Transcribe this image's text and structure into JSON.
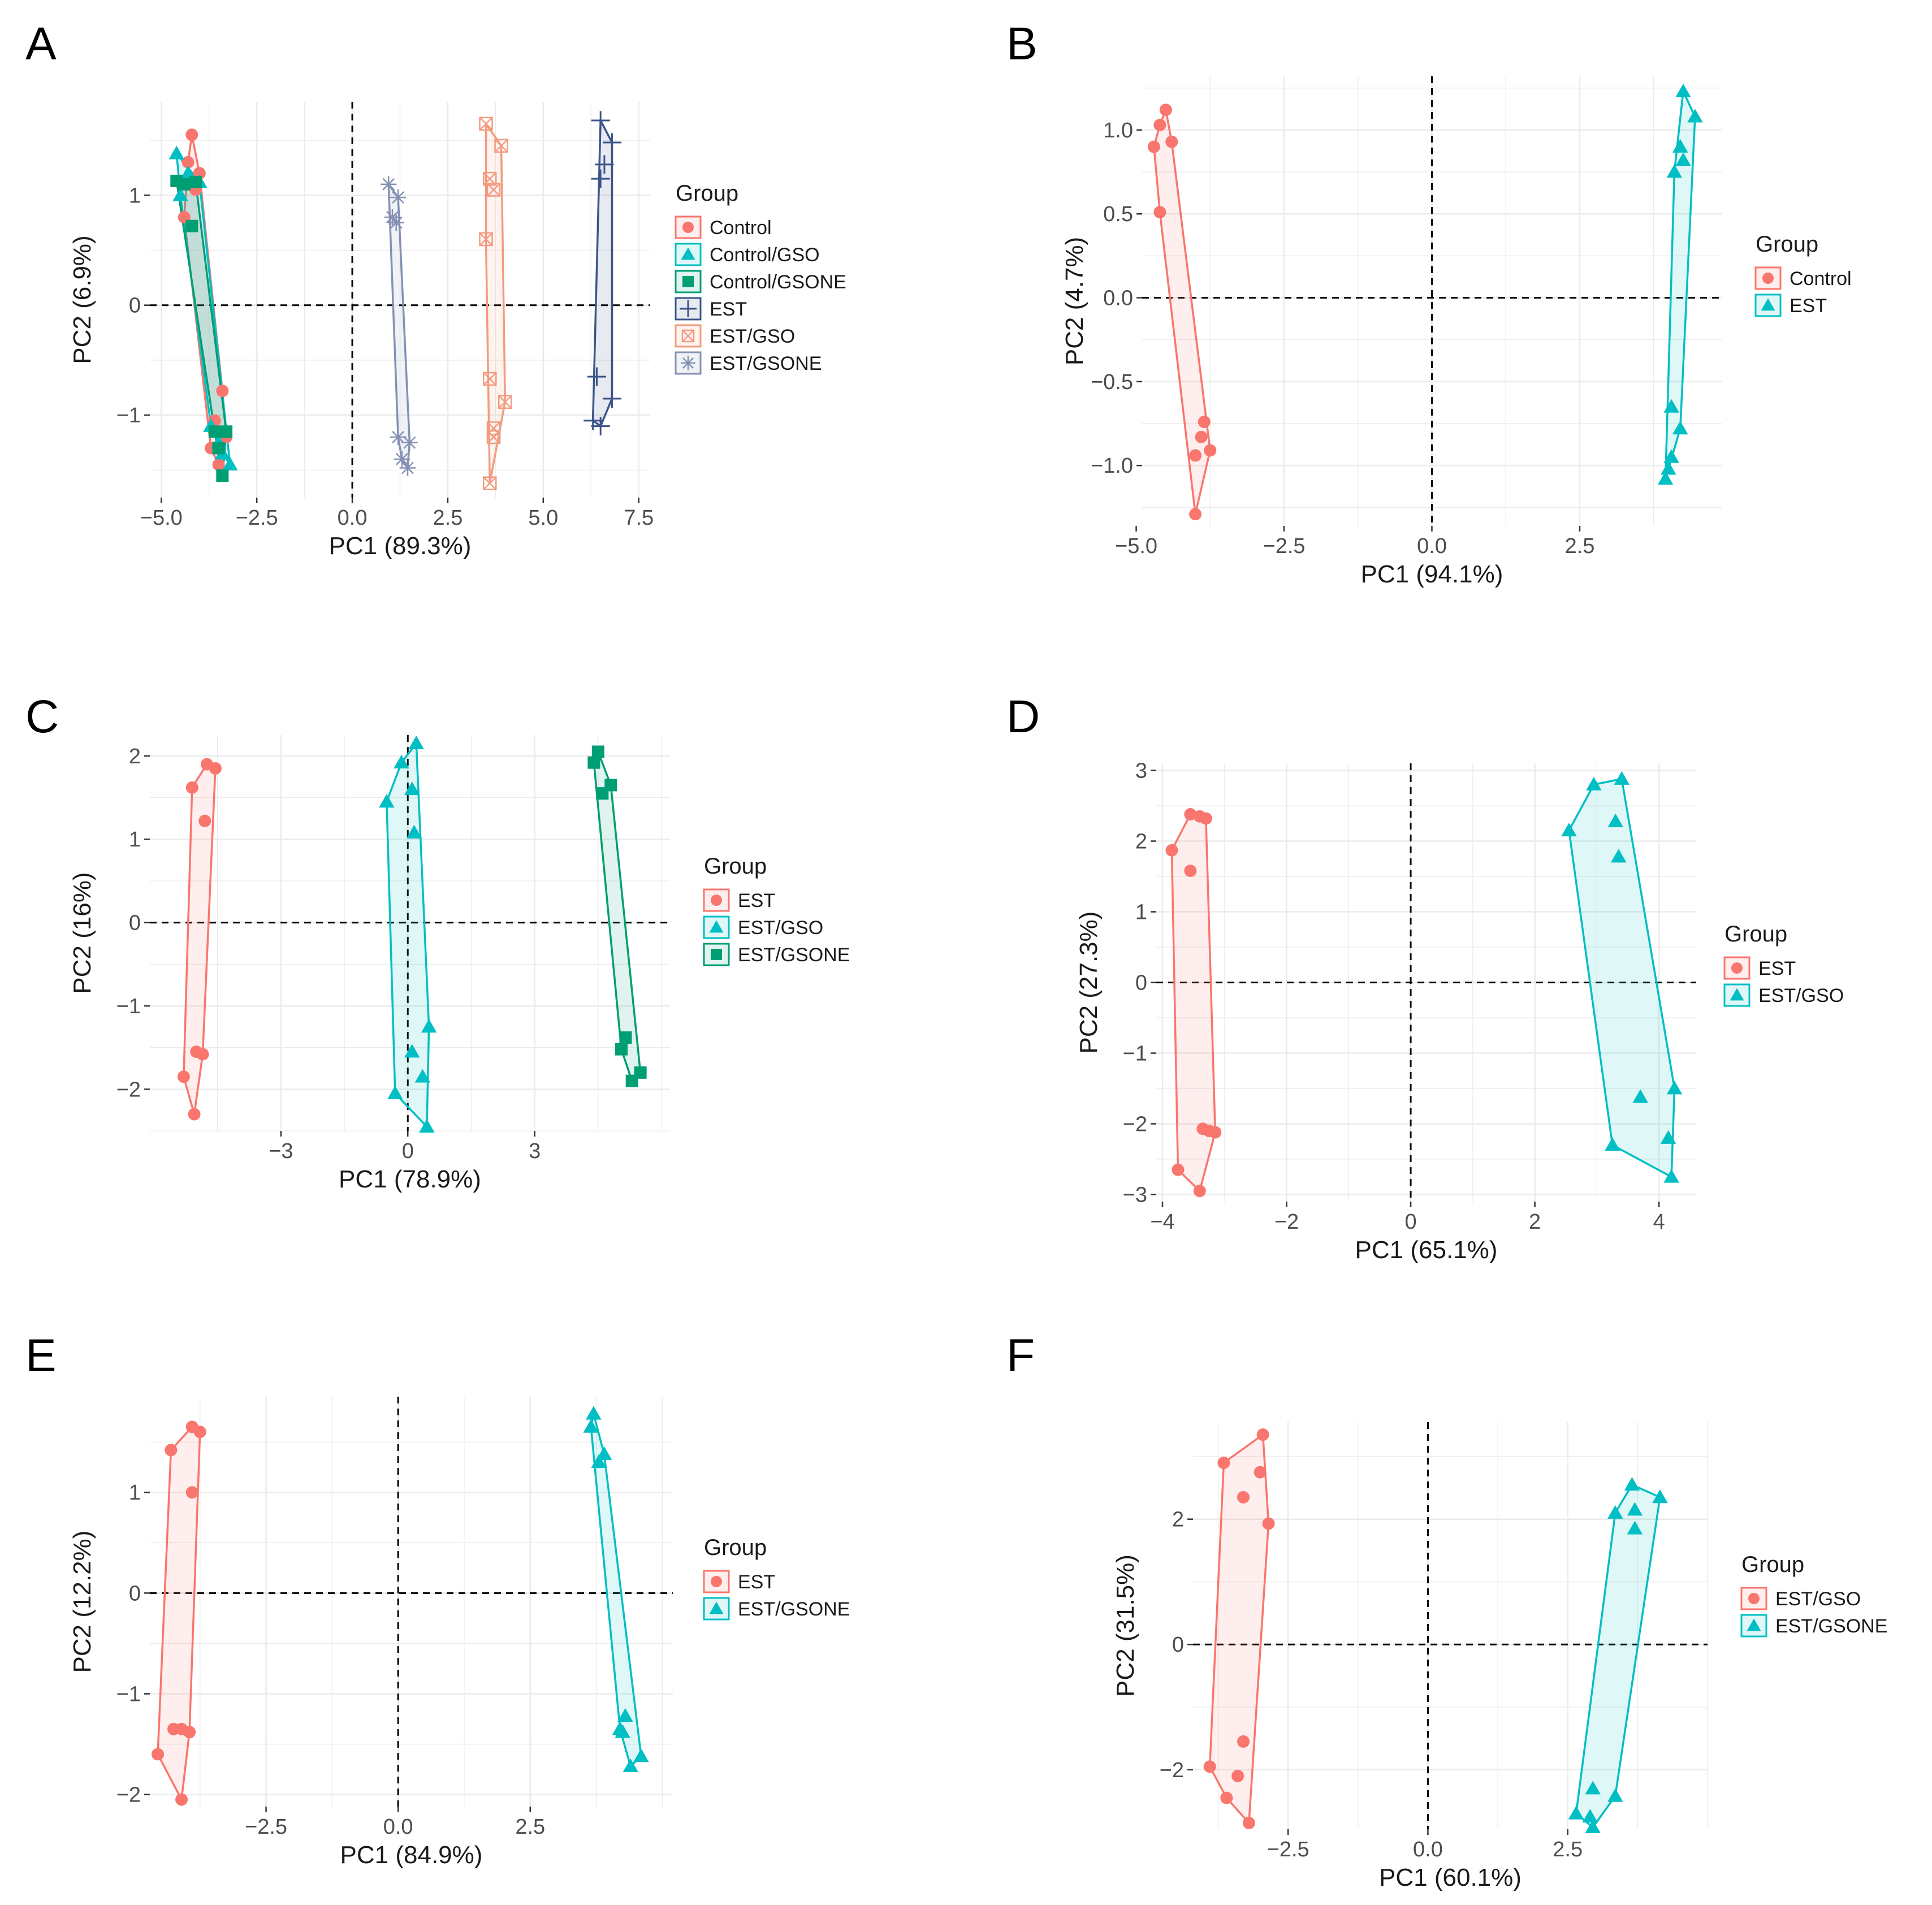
{
  "chart_data": [
    {
      "panel": "A",
      "type": "scatter",
      "title": "",
      "xlabel": "PC1 (89.3%)",
      "ylabel": "PC2 (6.9%)",
      "xlim": [
        -5.3,
        7.8
      ],
      "ylim": [
        -1.75,
        1.85
      ],
      "xticks": [
        -5.0,
        -2.5,
        0.0,
        2.5,
        5.0,
        7.5
      ],
      "xtick_labels": [
        "−5.0",
        "−2.5",
        "0.0",
        "2.5",
        "5.0",
        "7.5"
      ],
      "yticks": [
        -1,
        0,
        1
      ],
      "ytick_labels": [
        "−1",
        "0",
        "1"
      ],
      "grid": true,
      "legend_title": "Group",
      "legend_position": "right",
      "series": [
        {
          "name": "Control",
          "color": "#F8766D",
          "marker": "circle",
          "points": [
            [
              -4.2,
              1.55
            ],
            [
              -4.3,
              1.3
            ],
            [
              -4.0,
              1.2
            ],
            [
              -4.4,
              0.8
            ],
            [
              -4.1,
              1.05
            ],
            [
              -3.4,
              -0.78
            ],
            [
              -3.6,
              -1.05
            ],
            [
              -3.3,
              -1.2
            ],
            [
              -3.5,
              -1.45
            ],
            [
              -3.7,
              -1.3
            ]
          ]
        },
        {
          "name": "Control/GSO",
          "color": "#00BFC4",
          "marker": "triangle",
          "points": [
            [
              -4.6,
              1.38
            ],
            [
              -4.3,
              1.2
            ],
            [
              -4.0,
              1.12
            ],
            [
              -4.5,
              1.0
            ],
            [
              -3.2,
              -1.45
            ],
            [
              -3.5,
              -1.25
            ],
            [
              -3.7,
              -1.1
            ],
            [
              -3.4,
              -1.35
            ]
          ]
        },
        {
          "name": "Control/GSONE",
          "color": "#009E73",
          "marker": "square",
          "points": [
            [
              -4.6,
              1.13
            ],
            [
              -4.4,
              1.1
            ],
            [
              -4.1,
              1.12
            ],
            [
              -4.2,
              0.72
            ],
            [
              -3.3,
              -1.15
            ],
            [
              -3.6,
              -1.15
            ],
            [
              -3.4,
              -1.55
            ],
            [
              -3.5,
              -1.3
            ]
          ]
        },
        {
          "name": "EST",
          "color": "#3C5488",
          "marker": "plus",
          "points": [
            [
              6.5,
              1.68
            ],
            [
              6.8,
              1.48
            ],
            [
              6.6,
              1.28
            ],
            [
              6.5,
              1.15
            ],
            [
              6.4,
              -0.65
            ],
            [
              6.3,
              -1.05
            ],
            [
              6.5,
              -1.1
            ],
            [
              6.8,
              -0.85
            ]
          ]
        },
        {
          "name": "EST/GSO",
          "color": "#F39B7F",
          "marker": "boxcross",
          "points": [
            [
              3.5,
              1.65
            ],
            [
              3.9,
              1.45
            ],
            [
              3.6,
              1.15
            ],
            [
              3.7,
              1.05
            ],
            [
              3.5,
              0.6
            ],
            [
              3.6,
              -0.67
            ],
            [
              4.0,
              -0.88
            ],
            [
              3.7,
              -1.12
            ],
            [
              3.7,
              -1.2
            ],
            [
              3.6,
              -1.62
            ]
          ]
        },
        {
          "name": "EST/GSONE",
          "color": "#8491B4",
          "marker": "star",
          "points": [
            [
              0.95,
              1.1
            ],
            [
              1.2,
              0.98
            ],
            [
              1.05,
              0.8
            ],
            [
              1.15,
              0.75
            ],
            [
              1.2,
              -1.2
            ],
            [
              1.5,
              -1.25
            ],
            [
              1.3,
              -1.4
            ],
            [
              1.45,
              -1.48
            ]
          ]
        }
      ]
    },
    {
      "panel": "B",
      "type": "scatter",
      "title": "",
      "xlabel": "PC1 (94.1%)",
      "ylabel": "PC2 (4.7%)",
      "xlim": [
        -4.9,
        4.9
      ],
      "ylim": [
        -1.36,
        1.32
      ],
      "xticks": [
        -5.0,
        -2.5,
        0.0,
        2.5
      ],
      "xtick_labels": [
        "−5.0",
        "−2.5",
        "0.0",
        "2.5"
      ],
      "yticks": [
        -1.0,
        -0.5,
        0.0,
        0.5,
        1.0
      ],
      "ytick_labels": [
        "−1.0",
        "−0.5",
        "0.0",
        "0.5",
        "1.0"
      ],
      "grid": true,
      "legend_title": "Group",
      "legend_position": "right",
      "series": [
        {
          "name": "Control",
          "color": "#F8766D",
          "marker": "circle",
          "points": [
            [
              -4.5,
              1.12
            ],
            [
              -4.6,
              1.03
            ],
            [
              -4.4,
              0.93
            ],
            [
              -4.7,
              0.9
            ],
            [
              -4.6,
              0.51
            ],
            [
              -3.85,
              -0.74
            ],
            [
              -3.9,
              -0.83
            ],
            [
              -3.75,
              -0.91
            ],
            [
              -4.0,
              -0.94
            ],
            [
              -4.0,
              -1.29
            ]
          ]
        },
        {
          "name": "EST",
          "color": "#00BFC4",
          "marker": "triangle",
          "points": [
            [
              4.25,
              1.23
            ],
            [
              4.45,
              1.08
            ],
            [
              4.2,
              0.9
            ],
            [
              4.25,
              0.82
            ],
            [
              4.1,
              0.75
            ],
            [
              4.05,
              -0.65
            ],
            [
              4.2,
              -0.78
            ],
            [
              4.05,
              -0.95
            ],
            [
              4.0,
              -1.02
            ],
            [
              3.95,
              -1.08
            ]
          ]
        }
      ]
    },
    {
      "panel": "C",
      "type": "scatter",
      "title": "",
      "xlabel": "PC1 (78.9%)",
      "ylabel": "PC2 (16%)",
      "xlim": [
        -6.1,
        6.2
      ],
      "ylim": [
        -2.5,
        2.25
      ],
      "xticks": [
        -3,
        0,
        3
      ],
      "xtick_labels": [
        "−3",
        "0",
        "3"
      ],
      "yticks": [
        -2,
        -1,
        0,
        1,
        2
      ],
      "ytick_labels": [
        "−2",
        "−1",
        "0",
        "1",
        "2"
      ],
      "grid": true,
      "legend_title": "Group",
      "legend_position": "right",
      "series": [
        {
          "name": "EST",
          "color": "#F8766D",
          "marker": "circle",
          "points": [
            [
              -4.75,
              1.9
            ],
            [
              -4.55,
              1.85
            ],
            [
              -5.1,
              1.62
            ],
            [
              -4.8,
              1.22
            ],
            [
              -5.0,
              -1.55
            ],
            [
              -4.85,
              -1.58
            ],
            [
              -5.3,
              -1.85
            ],
            [
              -5.05,
              -2.3
            ]
          ]
        },
        {
          "name": "EST/GSO",
          "color": "#00BFC4",
          "marker": "triangle",
          "points": [
            [
              0.2,
              2.15
            ],
            [
              -0.15,
              1.92
            ],
            [
              0.1,
              1.6
            ],
            [
              0.15,
              1.08
            ],
            [
              -0.5,
              1.45
            ],
            [
              0.5,
              -1.25
            ],
            [
              0.1,
              -1.55
            ],
            [
              0.35,
              -1.85
            ],
            [
              -0.3,
              -2.05
            ],
            [
              0.45,
              -2.45
            ]
          ]
        },
        {
          "name": "EST/GSONE",
          "color": "#009E73",
          "marker": "square",
          "points": [
            [
              4.5,
              2.05
            ],
            [
              4.4,
              1.92
            ],
            [
              4.8,
              1.65
            ],
            [
              4.6,
              1.55
            ],
            [
              5.15,
              -1.38
            ],
            [
              5.05,
              -1.52
            ],
            [
              5.5,
              -1.8
            ],
            [
              5.3,
              -1.9
            ]
          ]
        }
      ]
    },
    {
      "panel": "D",
      "type": "scatter",
      "title": "",
      "xlabel": "PC1 (65.1%)",
      "ylabel": "PC2 (27.3%)",
      "xlim": [
        -4.1,
        4.6
      ],
      "ylim": [
        -3.1,
        3.1
      ],
      "xticks": [
        -4,
        -2,
        0,
        2,
        4
      ],
      "xtick_labels": [
        "−4",
        "−2",
        "0",
        "2",
        "4"
      ],
      "yticks": [
        -3,
        -2,
        -1,
        0,
        1,
        2,
        3
      ],
      "ytick_labels": [
        "−3",
        "−2",
        "−1",
        "0",
        "1",
        "2",
        "3"
      ],
      "grid": true,
      "legend_title": "Group",
      "legend_position": "right",
      "series": [
        {
          "name": "EST",
          "color": "#F8766D",
          "marker": "circle",
          "points": [
            [
              -3.55,
              2.38
            ],
            [
              -3.4,
              2.35
            ],
            [
              -3.3,
              2.32
            ],
            [
              -3.85,
              1.87
            ],
            [
              -3.55,
              1.58
            ],
            [
              -3.35,
              -2.07
            ],
            [
              -3.25,
              -2.1
            ],
            [
              -3.15,
              -2.12
            ],
            [
              -3.75,
              -2.65
            ],
            [
              -3.4,
              -2.95
            ]
          ]
        },
        {
          "name": "EST/GSO",
          "color": "#00BFC4",
          "marker": "triangle",
          "points": [
            [
              3.4,
              2.88
            ],
            [
              2.95,
              2.8
            ],
            [
              3.3,
              2.28
            ],
            [
              3.35,
              1.78
            ],
            [
              2.55,
              2.15
            ],
            [
              4.25,
              -1.5
            ],
            [
              3.7,
              -1.62
            ],
            [
              4.15,
              -2.2
            ],
            [
              3.25,
              -2.3
            ],
            [
              4.2,
              -2.75
            ]
          ]
        }
      ]
    },
    {
      "panel": "E",
      "type": "scatter",
      "title": "",
      "xlabel": "PC1 (84.9%)",
      "ylabel": "PC2 (12.2%)",
      "xlim": [
        -4.7,
        5.2
      ],
      "ylim": [
        -2.12,
        1.95
      ],
      "xticks": [
        -2.5,
        0.0,
        2.5
      ],
      "xtick_labels": [
        "−2.5",
        "0.0",
        "2.5"
      ],
      "yticks": [
        -2,
        -1,
        0,
        1
      ],
      "ytick_labels": [
        "−2",
        "−1",
        "0",
        "1"
      ],
      "grid": true,
      "legend_title": "Group",
      "legend_position": "right",
      "series": [
        {
          "name": "EST",
          "color": "#F8766D",
          "marker": "circle",
          "points": [
            [
              -3.9,
              1.65
            ],
            [
              -3.75,
              1.6
            ],
            [
              -4.3,
              1.42
            ],
            [
              -3.9,
              1.0
            ],
            [
              -4.25,
              -1.35
            ],
            [
              -4.1,
              -1.35
            ],
            [
              -3.95,
              -1.38
            ],
            [
              -4.55,
              -1.6
            ],
            [
              -4.1,
              -2.05
            ]
          ]
        },
        {
          "name": "EST/GSONE",
          "color": "#00BFC4",
          "marker": "triangle",
          "points": [
            [
              3.7,
              1.78
            ],
            [
              3.65,
              1.65
            ],
            [
              3.9,
              1.38
            ],
            [
              3.8,
              1.3
            ],
            [
              4.3,
              -1.22
            ],
            [
              4.2,
              -1.35
            ],
            [
              4.25,
              -1.38
            ],
            [
              4.6,
              -1.62
            ],
            [
              4.4,
              -1.72
            ]
          ]
        }
      ]
    },
    {
      "panel": "F",
      "type": "scatter",
      "title": "",
      "xlabel": "PC1 (60.1%)",
      "ylabel": "PC2 (31.5%)",
      "xlim": [
        -4.2,
        5.0
      ],
      "ylim": [
        -2.95,
        3.55
      ],
      "xticks": [
        -2.5,
        0.0,
        2.5
      ],
      "xtick_labels": [
        "−2.5",
        "0.0",
        "2.5"
      ],
      "yticks": [
        -2,
        0,
        2
      ],
      "ytick_labels": [
        "−2",
        "0",
        "2"
      ],
      "grid": true,
      "legend_title": "Group",
      "legend_position": "right",
      "series": [
        {
          "name": "EST/GSO",
          "color": "#F8766D",
          "marker": "circle",
          "points": [
            [
              -2.95,
              3.35
            ],
            [
              -3.65,
              2.9
            ],
            [
              -3.0,
              2.75
            ],
            [
              -3.3,
              2.35
            ],
            [
              -2.85,
              1.93
            ],
            [
              -3.3,
              -1.55
            ],
            [
              -3.9,
              -1.95
            ],
            [
              -3.4,
              -2.1
            ],
            [
              -3.6,
              -2.45
            ],
            [
              -3.2,
              -2.85
            ]
          ]
        },
        {
          "name": "EST/GSONE",
          "color": "#00BFC4",
          "marker": "triangle",
          "points": [
            [
              3.65,
              2.55
            ],
            [
              4.15,
              2.35
            ],
            [
              3.7,
              2.15
            ],
            [
              3.35,
              2.1
            ],
            [
              3.7,
              1.85
            ],
            [
              2.95,
              -2.3
            ],
            [
              3.35,
              -2.42
            ],
            [
              2.65,
              -2.7
            ],
            [
              2.9,
              -2.75
            ],
            [
              2.95,
              -2.92
            ]
          ]
        }
      ]
    }
  ]
}
